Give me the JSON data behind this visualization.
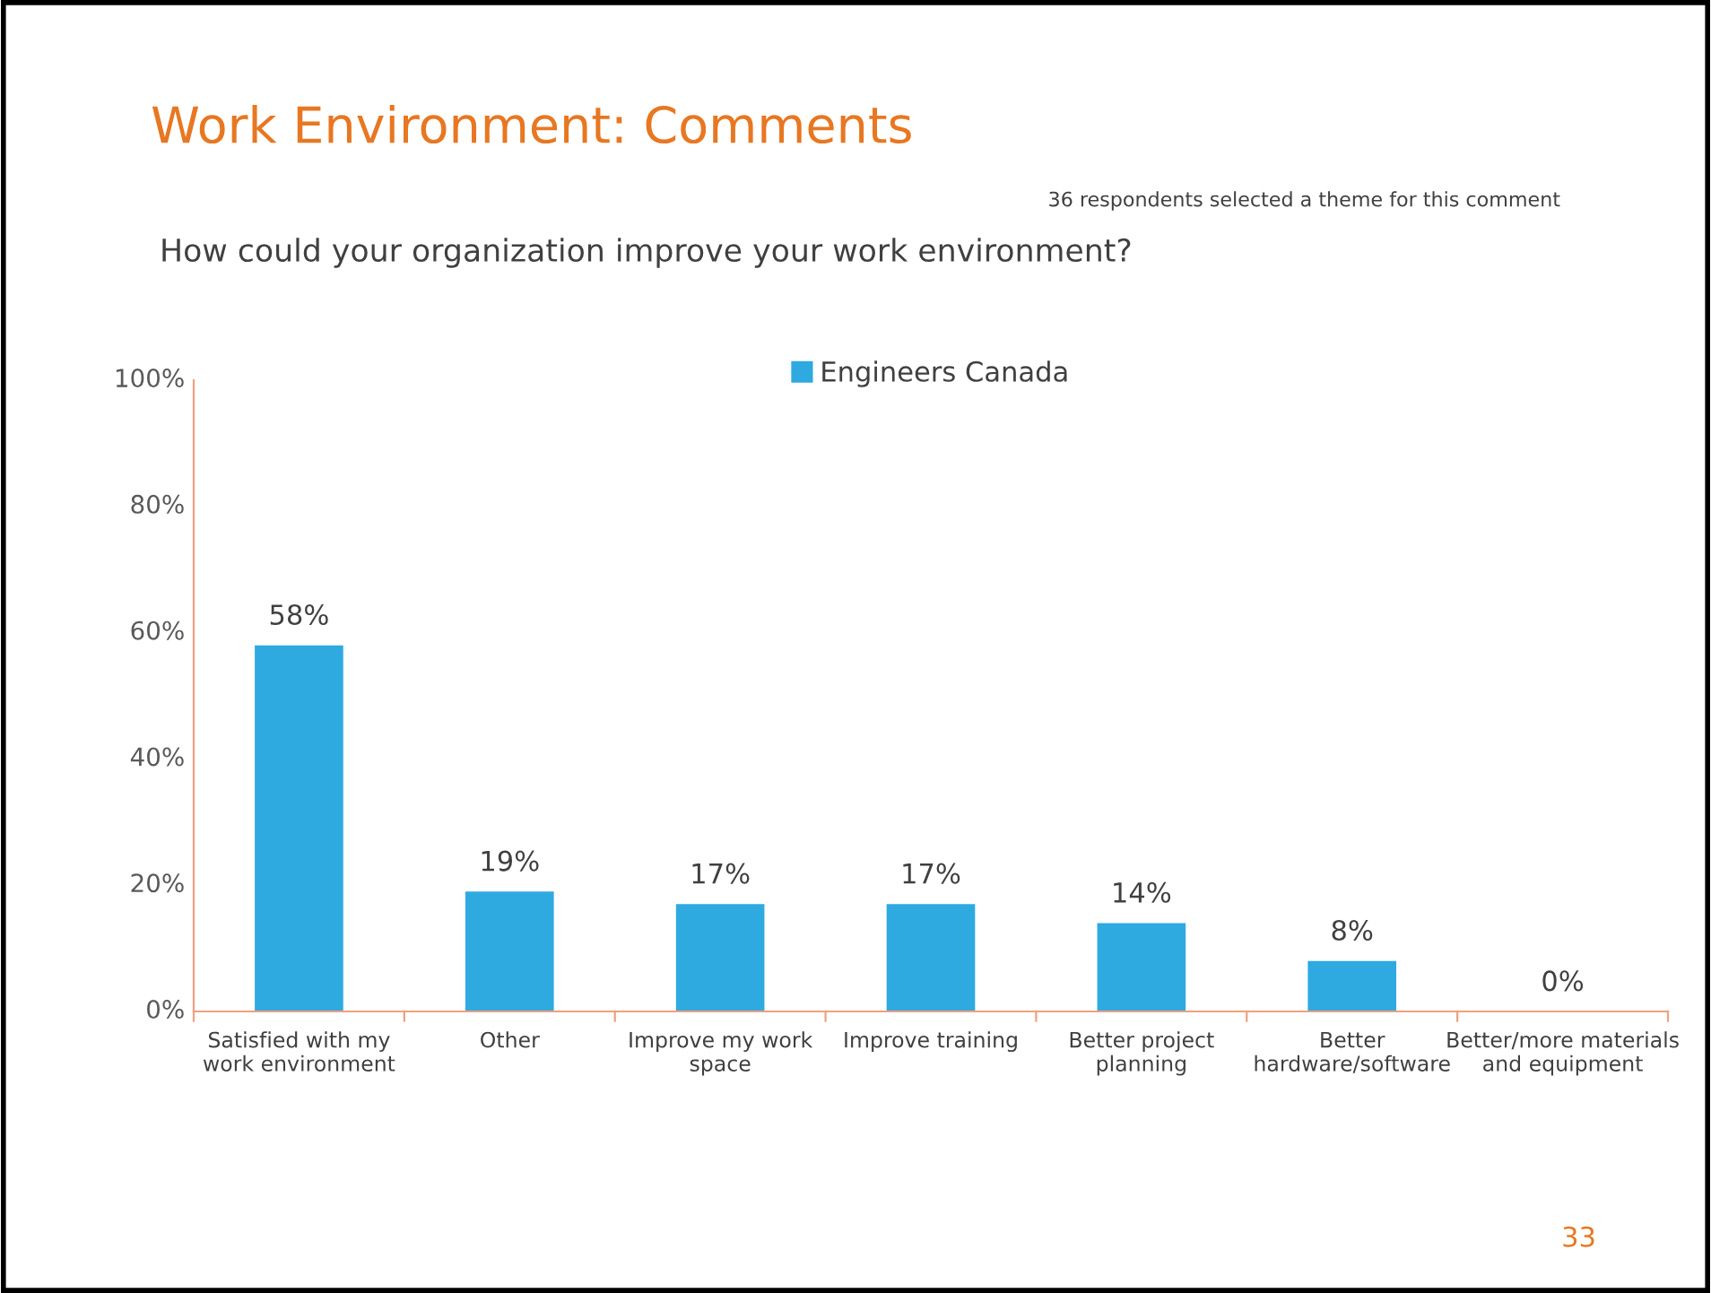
{
  "chart_data": {
    "type": "bar",
    "title": "Work Environment: Comments",
    "subtitle": "How could your organization improve your work environment?",
    "annotations": [
      "36 respondents selected a theme for this comment",
      "33"
    ],
    "categories": [
      "Satisfied with my\nwork environment",
      "Other",
      "Improve my work\nspace",
      "Improve training",
      "Better project\nplanning",
      "Better\nhardware/software",
      "Better/more materials\nand equipment"
    ],
    "series": [
      {
        "name": "Engineers Canada",
        "color": "#2eaae1",
        "values": [
          58,
          19,
          17,
          17,
          14,
          8,
          0
        ]
      }
    ],
    "ylim": [
      0,
      100
    ],
    "yticks": [
      {
        "value": 0,
        "label": "0%"
      },
      {
        "value": 20,
        "label": "20%"
      },
      {
        "value": 40,
        "label": "40%"
      },
      {
        "value": 60,
        "label": "60%"
      },
      {
        "value": 80,
        "label": "80%"
      },
      {
        "value": 100,
        "label": "100%"
      }
    ],
    "value_labels": [
      "58%",
      "19%",
      "17%",
      "17%",
      "14%",
      "8%",
      "0%"
    ],
    "legend": "top",
    "grid": false
  }
}
